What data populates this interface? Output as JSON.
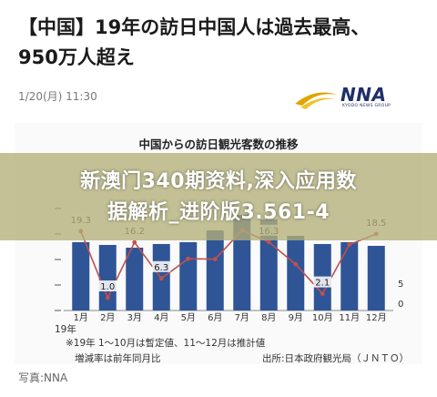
{
  "article": {
    "headline_line1": "【中国】19年の訪日中国人は過去最高、",
    "headline_line2": "950万人超え",
    "date": "1/20(月) 11:30",
    "logo_text": "NNA",
    "logo_sub": "KYODO NEWS GROUP",
    "photo_credit": "写真:NNA"
  },
  "overlay": {
    "line1": "新澳门340期资料,深入应用数",
    "line2": "据解析_进阶版3.561-4"
  },
  "notes": {
    "year_label": "19年",
    "note1": "※19年 1～10月は暫定値、11～12月は推計値",
    "note2": "増減率は前年同月比",
    "source": "出所:日本政府観光局（ＪＮＴＯ）"
  },
  "colors": {
    "bar": "#2f5597",
    "line": "#c0504d",
    "overlay": "#b4af78"
  },
  "chart_data": {
    "type": "bar",
    "title": "中国からの訪日観光客数の推移",
    "categories": [
      "1月",
      "2月",
      "3月",
      "4月",
      "5月",
      "6月",
      "7月",
      "8月",
      "9月",
      "10月",
      "11月",
      "12月"
    ],
    "series": [
      {
        "name": "",
        "type": "bar",
        "values": [
          75,
          72,
          69,
          73,
          75,
          88,
          105,
          100,
          82,
          73,
          75,
          71
        ]
      },
      {
        "name": "",
        "type": "line",
        "values": [
          19.3,
          1.0,
          16.2,
          6.3,
          11.7,
          11.6,
          19.5,
          16.3,
          10.2,
          2.1,
          15.6,
          18.5
        ]
      }
    ],
    "point_labels": [
      "19.3",
      "1.0",
      "16.2",
      "6.3",
      "",
      "",
      "",
      "16.3",
      "",
      "2.1",
      "",
      "18.5"
    ],
    "right_ticks": [
      "5",
      "0"
    ],
    "left_ticks": [
      "",
      "",
      "",
      ""
    ]
  }
}
